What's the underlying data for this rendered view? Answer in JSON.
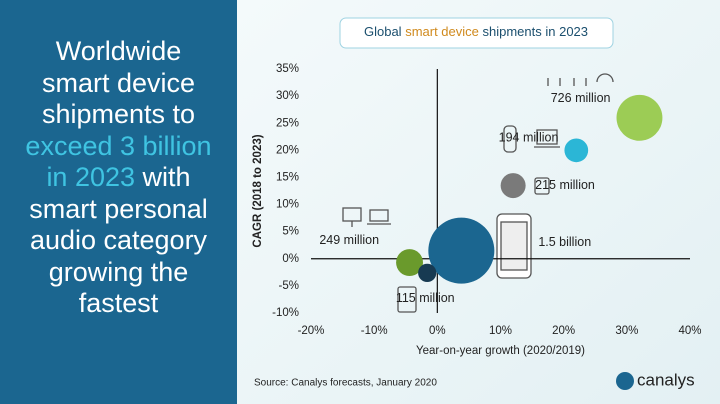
{
  "headline": [
    [
      {
        "text": "Worldwide",
        "highlight": false
      }
    ],
    [
      {
        "text": "smart device",
        "highlight": false
      }
    ],
    [
      {
        "text": "shipments to",
        "highlight": false
      }
    ],
    [
      {
        "text": "exceed 3 billion",
        "highlight": true
      }
    ],
    [
      {
        "text": "in 2023",
        "highlight": true
      },
      {
        "text": " with",
        "highlight": false
      }
    ],
    [
      {
        "text": "smart personal",
        "highlight": false
      }
    ],
    [
      {
        "text": "audio category",
        "highlight": false
      }
    ],
    [
      {
        "text": "growing the",
        "highlight": false
      }
    ],
    [
      {
        "text": "fastest",
        "highlight": false
      }
    ]
  ],
  "chart_data": {
    "type": "bubble",
    "title_parts": [
      {
        "text": "Global ",
        "color": "#1b4f6e"
      },
      {
        "text": "smart device",
        "color": "#d08a1e"
      },
      {
        "text": " shipments in 2023",
        "color": "#1b4f6e"
      }
    ],
    "x_label": "Year-on-year growth (2020/2019)",
    "y_label": "CAGR (2018 to 2023)",
    "x": [
      3.8,
      -4.4,
      -1.6,
      12,
      22,
      32
    ],
    "values": [
      1.5,
      -0.7,
      -2.6,
      13.5,
      20,
      26
    ],
    "sizes": [
      1500,
      249,
      115,
      215,
      194,
      726
    ],
    "size_labels": [
      "1.5 billion",
      "249 million",
      "115 million",
      "215 million",
      "194 million",
      "726 million"
    ],
    "colors": [
      "#1b6690",
      "#6a9a2c",
      "#173a52",
      "#7a7a7a",
      "#2bb6d6",
      "#9ccc55"
    ],
    "xlim": [
      -20,
      40
    ],
    "xticks": [
      {
        "value": -20,
        "label": "-20%"
      },
      {
        "value": -10,
        "label": "-10%"
      },
      {
        "value": 0,
        "label": "0%"
      },
      {
        "value": 10,
        "label": "10%"
      },
      {
        "value": 20,
        "label": "20%"
      },
      {
        "value": 30,
        "label": "30%"
      },
      {
        "value": 40,
        "label": "40%"
      }
    ],
    "ylim": [
      -10,
      35
    ],
    "yticks": [
      {
        "value": -10,
        "label": "-10%"
      },
      {
        "value": -5,
        "label": "-5%"
      },
      {
        "value": 0,
        "label": "0%"
      },
      {
        "value": 5,
        "label": "5%"
      },
      {
        "value": 10,
        "label": "10%"
      },
      {
        "value": 15,
        "label": "15%"
      },
      {
        "value": 20,
        "label": "20%"
      },
      {
        "value": 25,
        "label": "25%"
      },
      {
        "value": 30,
        "label": "30%"
      },
      {
        "value": 35,
        "label": "35%"
      }
    ],
    "label_color": "#1b6690",
    "source": "Source: Canalys forecasts, January 2020",
    "logo": "canalys"
  }
}
